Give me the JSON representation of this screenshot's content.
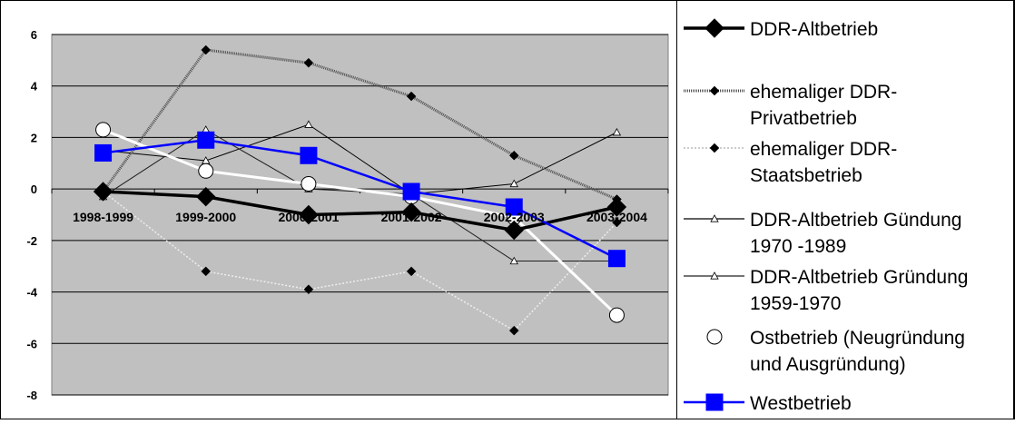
{
  "chart_data": {
    "type": "line",
    "title": "",
    "xlabel": "",
    "ylabel": "",
    "ylim": [
      -8,
      6
    ],
    "yticks": [
      6,
      4,
      2,
      0,
      -2,
      -4,
      -6,
      -8
    ],
    "ytick_labels": [
      "6",
      "4",
      "2",
      "0",
      "-2",
      "-4",
      "-6",
      "-8"
    ],
    "grid": true,
    "legend_position": "right",
    "colors": {
      "plot_background": "#c0c0c0",
      "gridline": "#000000"
    },
    "categories": [
      "1998-1999",
      "1999-2000",
      "2000-2001",
      "2001-2002",
      "2002-2003",
      "2003-2004"
    ],
    "series": [
      {
        "name": "DDR-Altbetrieb",
        "legend_lines": [
          "DDR-Altbetrieb"
        ],
        "values": [
          -0.1,
          -0.3,
          -1.0,
          -0.9,
          -1.6,
          -0.7
        ],
        "color": "#000000",
        "marker": "diamond"
      },
      {
        "name": "ehemaliger DDR-Privatbetrieb",
        "legend_lines": [
          "ehemaliger DDR-",
          "Privatbetrieb"
        ],
        "values": [
          -0.1,
          5.4,
          4.9,
          3.6,
          1.3,
          -0.4
        ],
        "color": "#505050",
        "marker": "small-diamond"
      },
      {
        "name": "ehemaliger DDR-Staatsbetrieb",
        "legend_lines": [
          "ehemaliger DDR-",
          "Staatsbetrieb"
        ],
        "values": [
          -0.1,
          -3.2,
          -3.9,
          -3.2,
          -5.5,
          -1.3
        ],
        "color": "#eeeeee",
        "marker": "small-diamond"
      },
      {
        "name": "DDR-Altbetrieb Gündung 1970 -1989",
        "legend_lines": [
          "DDR-Altbetrieb Gündung",
          "1970 -1989"
        ],
        "values": [
          1.5,
          1.1,
          2.5,
          -0.2,
          0.2,
          2.2
        ],
        "color": "#000000",
        "marker": "triangle"
      },
      {
        "name": "DDR-Altbetrieb Gründung 1959-1970",
        "legend_lines": [
          "DDR-Altbetrieb Gründung",
          "1959-1970"
        ],
        "values": [
          -0.3,
          2.3,
          0.0,
          -0.2,
          -2.8,
          -2.8
        ],
        "color": "#202020",
        "marker": "triangle"
      },
      {
        "name": "Ostbetrieb (Neugründung und Ausgründung)",
        "legend_lines": [
          "Ostbetrieb (Neugründung",
          "und Ausgründung)"
        ],
        "values": [
          2.3,
          0.7,
          0.2,
          -0.3,
          -1.1,
          -4.9
        ],
        "color": "#ffffff",
        "marker": "circle"
      },
      {
        "name": "Westbetrieb",
        "legend_lines": [
          "Westbetrieb"
        ],
        "values": [
          1.4,
          1.9,
          1.3,
          -0.1,
          -0.7,
          -2.7
        ],
        "color": "#0000ff",
        "marker": "square"
      }
    ]
  }
}
